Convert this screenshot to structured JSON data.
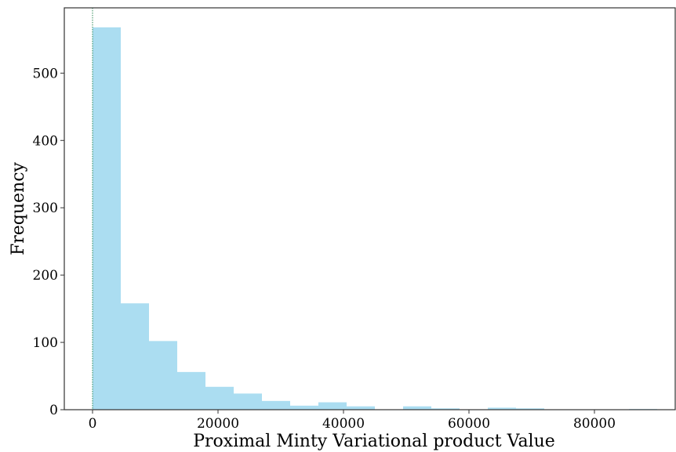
{
  "chart_data": {
    "type": "bar",
    "title": "",
    "xlabel": "Proximal Minty Variational product Value",
    "ylabel": "Frequency",
    "xlim": [
      -4500,
      93000
    ],
    "ylim": [
      0,
      597
    ],
    "x_ticks": [
      0,
      20000,
      40000,
      60000,
      80000
    ],
    "y_ticks": [
      0,
      100,
      200,
      300,
      400,
      500
    ],
    "bin_width": 4500,
    "bins": [
      {
        "start": 0,
        "value": 568
      },
      {
        "start": 4500,
        "value": 158
      },
      {
        "start": 9000,
        "value": 102
      },
      {
        "start": 13500,
        "value": 56
      },
      {
        "start": 18000,
        "value": 34
      },
      {
        "start": 22500,
        "value": 24
      },
      {
        "start": 27000,
        "value": 13
      },
      {
        "start": 31500,
        "value": 6
      },
      {
        "start": 36000,
        "value": 11
      },
      {
        "start": 40500,
        "value": 5
      },
      {
        "start": 45000,
        "value": 0
      },
      {
        "start": 49500,
        "value": 5
      },
      {
        "start": 54000,
        "value": 2
      },
      {
        "start": 58500,
        "value": 0
      },
      {
        "start": 63000,
        "value": 3
      },
      {
        "start": 67500,
        "value": 2
      },
      {
        "start": 72000,
        "value": 0
      },
      {
        "start": 76500,
        "value": 0
      },
      {
        "start": 81000,
        "value": 0
      },
      {
        "start": 85500,
        "value": 1
      }
    ],
    "bar_color": "#87ceeb",
    "reference_line": {
      "x": 0,
      "color": "#2e8b57",
      "style": "dotted"
    },
    "grid": false,
    "legend": "none"
  }
}
